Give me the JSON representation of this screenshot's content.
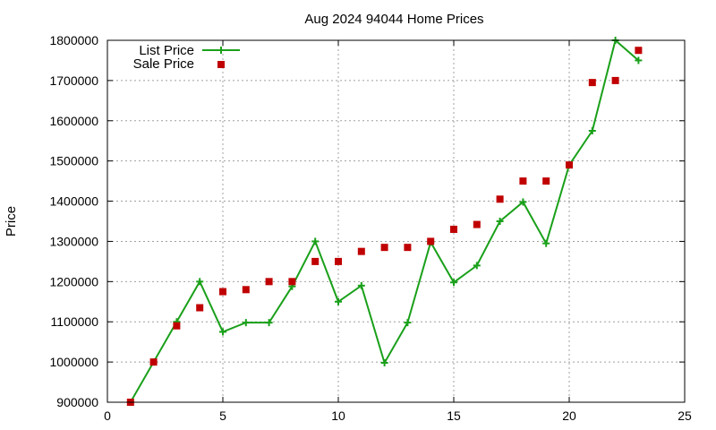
{
  "chart_data": {
    "type": "line",
    "title": "Aug 2024 94044 Home Prices",
    "xlabel": "",
    "ylabel": "Price",
    "xlim": [
      0,
      25
    ],
    "ylim": [
      900000,
      1800000
    ],
    "x_ticks": [
      0,
      5,
      10,
      15,
      20,
      25
    ],
    "y_ticks": [
      900000,
      1000000,
      1100000,
      1200000,
      1300000,
      1400000,
      1500000,
      1600000,
      1700000,
      1800000
    ],
    "grid": true,
    "legend_position": "top-left",
    "series": [
      {
        "name": "List Price",
        "style": "line-plus",
        "color": "#1aa01a",
        "x": [
          1,
          2,
          3,
          4,
          5,
          6,
          7,
          8,
          9,
          10,
          11,
          12,
          13,
          14,
          15,
          16,
          17,
          18,
          19,
          20,
          21,
          22,
          23
        ],
        "values": [
          900000,
          1000000,
          1100000,
          1200000,
          1075000,
          1098000,
          1098000,
          1188000,
          1300000,
          1150000,
          1190000,
          998000,
          1098000,
          1298000,
          1198000,
          1240000,
          1350000,
          1398000,
          1295000,
          1490000,
          1575000,
          1800000,
          1750000
        ]
      },
      {
        "name": "Sale Price",
        "style": "square",
        "color": "#c00000",
        "x": [
          1,
          2,
          3,
          4,
          5,
          6,
          7,
          8,
          9,
          10,
          11,
          12,
          13,
          14,
          15,
          16,
          17,
          18,
          19,
          20,
          21,
          22,
          23
        ],
        "values": [
          900000,
          1000000,
          1090000,
          1135000,
          1175000,
          1180000,
          1200000,
          1200000,
          1250000,
          1250000,
          1275000,
          1285000,
          1285000,
          1300000,
          1330000,
          1342000,
          1405000,
          1450000,
          1450000,
          1490000,
          1695000,
          1700000,
          1775000
        ]
      }
    ]
  }
}
